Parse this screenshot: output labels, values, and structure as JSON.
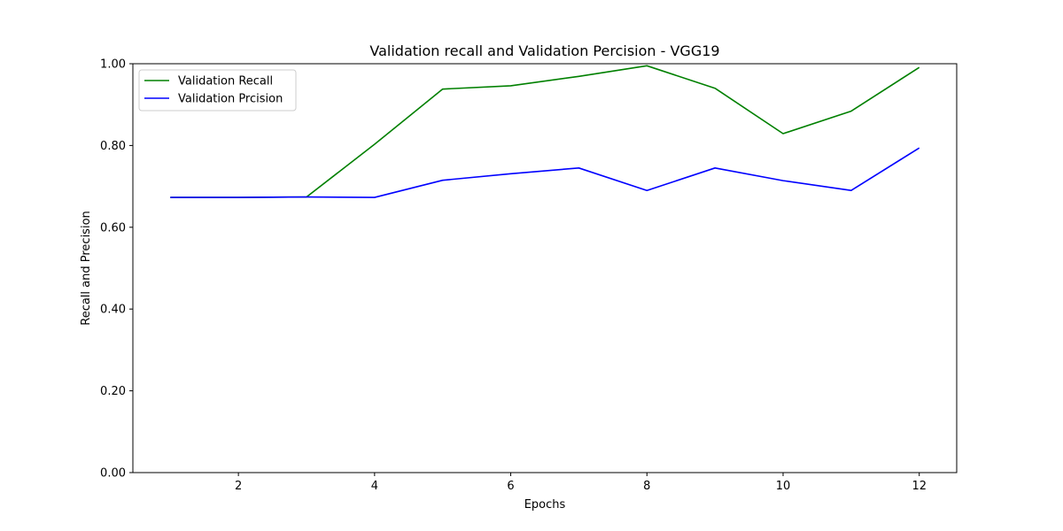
{
  "chart_data": {
    "type": "line",
    "title": "Validation recall and Validation Percision - VGG19",
    "xlabel": "Epochs",
    "ylabel": "Recall and Precision",
    "x": [
      1,
      2,
      3,
      4,
      5,
      6,
      7,
      8,
      9,
      10,
      11,
      12
    ],
    "xlim": [
      0.45,
      12.55
    ],
    "ylim": [
      0,
      1
    ],
    "xticks": [
      2,
      4,
      6,
      8,
      10,
      12
    ],
    "xtick_labels": [
      "2",
      "4",
      "6",
      "8",
      "10",
      "12"
    ],
    "yticks": [
      0,
      0.2,
      0.4,
      0.6,
      0.8,
      1.0
    ],
    "ytick_labels": [
      "0.00",
      "0.20",
      "0.40",
      "0.60",
      "0.80",
      "1.00"
    ],
    "grid": false,
    "legend_position": "top-left",
    "series": [
      {
        "name": "Validation Recall",
        "color": "#008000",
        "values": [
          0.673,
          0.673,
          0.674,
          0.803,
          0.938,
          0.946,
          0.969,
          0.995,
          0.94,
          0.829,
          0.884,
          0.991
        ]
      },
      {
        "name": "Validation Prcision",
        "color": "#0000ff",
        "values": [
          0.673,
          0.673,
          0.674,
          0.673,
          0.715,
          0.731,
          0.745,
          0.69,
          0.745,
          0.714,
          0.69,
          0.794
        ]
      }
    ]
  }
}
